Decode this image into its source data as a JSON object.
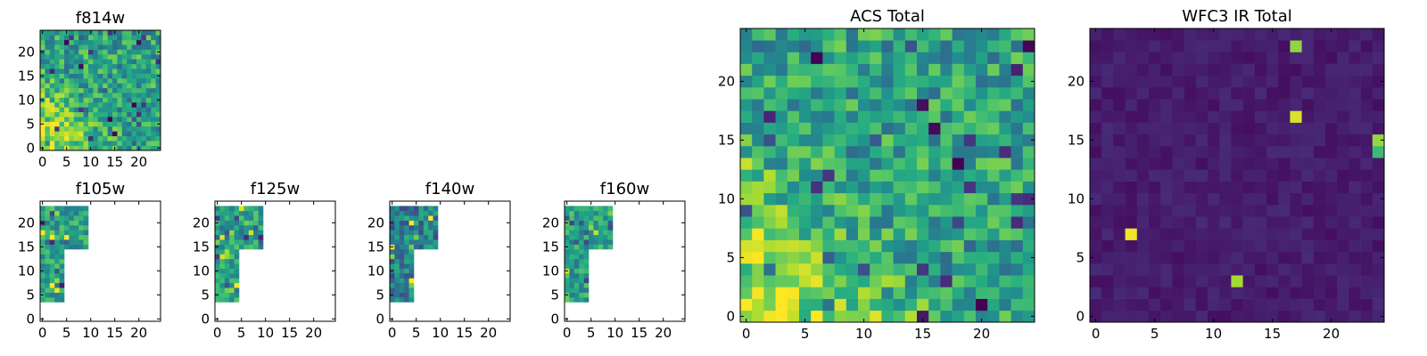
{
  "chart_data": [
    {
      "type": "heatmap",
      "title": "f814w",
      "x_ticks": [
        "0",
        "5",
        "10",
        "15",
        "20"
      ],
      "y_ticks": [
        "0",
        "5",
        "10",
        "15",
        "20"
      ],
      "xlim": [
        0,
        24
      ],
      "ylim": [
        0,
        24
      ],
      "mask": "full",
      "field": "noise",
      "seed": 11
    },
    {
      "type": "heatmap",
      "title": "f105w",
      "x_ticks": [
        "0",
        "5",
        "10",
        "15",
        "20"
      ],
      "y_ticks": [
        "0",
        "5",
        "10",
        "15",
        "20"
      ],
      "xlim": [
        0,
        24
      ],
      "ylim": [
        0,
        24
      ],
      "mask": "partial",
      "field": "patch",
      "seed": 23
    },
    {
      "type": "heatmap",
      "title": "f125w",
      "x_ticks": [
        "0",
        "5",
        "10",
        "15",
        "20"
      ],
      "y_ticks": [
        "0",
        "5",
        "10",
        "15",
        "20"
      ],
      "xlim": [
        0,
        24
      ],
      "ylim": [
        0,
        24
      ],
      "mask": "partial",
      "field": "patch",
      "seed": 37
    },
    {
      "type": "heatmap",
      "title": "f140w",
      "x_ticks": [
        "0",
        "5",
        "10",
        "15",
        "20"
      ],
      "y_ticks": [
        "0",
        "5",
        "10",
        "15",
        "20"
      ],
      "xlim": [
        0,
        24
      ],
      "ylim": [
        0,
        24
      ],
      "mask": "partial",
      "field": "patch-dark",
      "seed": 41
    },
    {
      "type": "heatmap",
      "title": "f160w",
      "x_ticks": [
        "0",
        "5",
        "10",
        "15",
        "20"
      ],
      "y_ticks": [
        "0",
        "5",
        "10",
        "15",
        "20"
      ],
      "xlim": [
        0,
        24
      ],
      "ylim": [
        0,
        24
      ],
      "mask": "partial",
      "field": "patch",
      "seed": 53
    },
    {
      "type": "heatmap",
      "title": "ACS Total",
      "x_ticks": [
        "0",
        "5",
        "10",
        "15",
        "20"
      ],
      "y_ticks": [
        "0",
        "5",
        "10",
        "15",
        "20"
      ],
      "xlim": [
        0,
        24
      ],
      "ylim": [
        0,
        24
      ],
      "mask": "full",
      "field": "noise",
      "seed": 71
    },
    {
      "type": "heatmap",
      "title": "WFC3 IR Total",
      "x_ticks": [
        "0",
        "5",
        "10",
        "15",
        "20"
      ],
      "y_ticks": [
        "0",
        "5",
        "10",
        "15",
        "20"
      ],
      "xlim": [
        0,
        24
      ],
      "ylim": [
        0,
        24
      ],
      "mask": "full",
      "field": "sparse",
      "seed": 89
    }
  ],
  "colormap": "viridis"
}
